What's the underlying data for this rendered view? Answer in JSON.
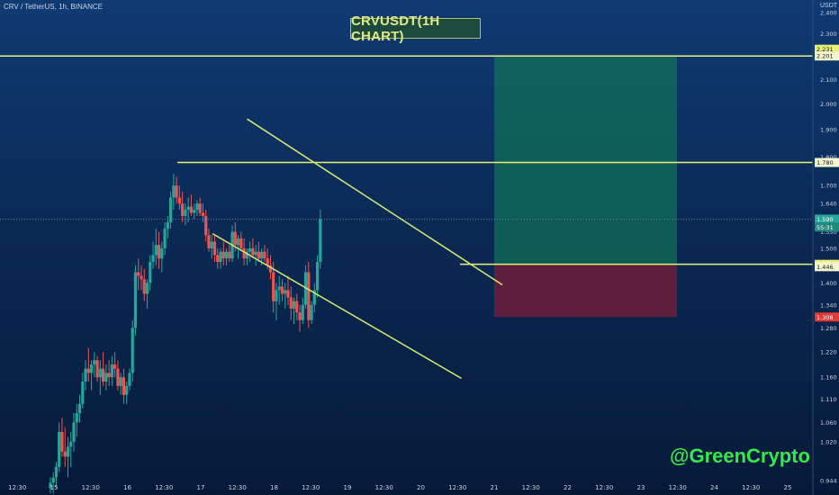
{
  "header": {
    "symbol": "CRV / TetherUS, 1h, BINANCE",
    "currency": "USDT"
  },
  "title": "CRVUSDT(1H CHART)",
  "watermark": "@GreenCrypto",
  "colors": {
    "up": "#26a69a",
    "down": "#ef5350",
    "level_line": "#e8f07a",
    "channel_line": "#d6e870",
    "target_zone": "#0f7a57",
    "stop_zone": "#7a1d35",
    "title_text": "#dfe98a",
    "watermark": "#34e84e"
  },
  "chart_data": {
    "type": "candlestick",
    "symbol": "CRV / TetherUS",
    "timeframe": "1h",
    "exchange": "BINANCE",
    "title": "CRVUSDT(1H CHART)",
    "ylim": [
      0.92,
      2.42
    ],
    "y_ticks": [
      "0.944",
      "1.020",
      "1.060",
      "1.110",
      "1.160",
      "1.220",
      "1.280",
      "1.340",
      "1.400",
      "1.500",
      "1.550",
      "1.640",
      "1.700",
      "1.800",
      "1.900",
      "2.000",
      "2.100",
      "2.300",
      "2.400"
    ],
    "x_ticks": [
      "12:30",
      "15",
      "12:30",
      "16",
      "12:30",
      "17",
      "12:30",
      "18",
      "12:30",
      "19",
      "12:30",
      "20",
      "12:30",
      "21",
      "12:30",
      "22",
      "12:30",
      "23",
      "12:30",
      "24",
      "12:30",
      "25"
    ],
    "current_price": "1.590",
    "countdown": "55:31",
    "levels": [
      {
        "name": "target",
        "value": 2.201,
        "label": "2.201",
        "label_top": "2.231"
      },
      {
        "name": "resistance",
        "value": 1.78,
        "label": "1.780"
      },
      {
        "name": "breakout",
        "value": 1.453,
        "label": "1.453",
        "label_second": "1.446"
      },
      {
        "name": "stop",
        "value": 1.308,
        "label": "1.308"
      }
    ],
    "positions": {
      "entry": 1.453,
      "target": 2.201,
      "stop": 1.308
    },
    "channel": {
      "upper": [
        {
          "t": 18.0,
          "p": 1.9
        },
        {
          "t": 20.78,
          "p": 1.42
        }
      ],
      "lower": [
        {
          "t": 17.1,
          "p": 1.55
        },
        {
          "t": 20.7,
          "p": 1.17
        }
      ]
    },
    "candles": [
      [
        14.95,
        0.93,
        0.95,
        0.92,
        0.94
      ],
      [
        14.99,
        0.94,
        0.96,
        0.92,
        0.95
      ],
      [
        15.03,
        0.95,
        0.98,
        0.93,
        0.97
      ],
      [
        15.07,
        0.97,
        1.06,
        0.96,
        1.04
      ],
      [
        15.11,
        1.04,
        1.07,
        0.99,
        1.0
      ],
      [
        15.15,
        1.0,
        1.05,
        0.97,
        0.99
      ],
      [
        15.19,
        0.99,
        1.03,
        0.95,
        1.01
      ],
      [
        15.23,
        1.01,
        1.04,
        0.97,
        1.02
      ],
      [
        15.27,
        1.02,
        1.08,
        1.0,
        1.06
      ],
      [
        15.31,
        1.06,
        1.1,
        1.03,
        1.08
      ],
      [
        15.35,
        1.08,
        1.12,
        1.06,
        1.1
      ],
      [
        15.39,
        1.1,
        1.17,
        1.09,
        1.15
      ],
      [
        15.43,
        1.15,
        1.2,
        1.13,
        1.18
      ],
      [
        15.47,
        1.18,
        1.23,
        1.15,
        1.17
      ],
      [
        15.51,
        1.17,
        1.2,
        1.13,
        1.19
      ],
      [
        15.55,
        1.19,
        1.22,
        1.16,
        1.2
      ],
      [
        15.59,
        1.2,
        1.21,
        1.15,
        1.16
      ],
      [
        15.63,
        1.16,
        1.2,
        1.12,
        1.18
      ],
      [
        15.67,
        1.18,
        1.22,
        1.14,
        1.15
      ],
      [
        15.71,
        1.15,
        1.19,
        1.13,
        1.17
      ],
      [
        15.75,
        1.17,
        1.2,
        1.14,
        1.16
      ],
      [
        15.79,
        1.16,
        1.21,
        1.14,
        1.19
      ],
      [
        15.83,
        1.19,
        1.22,
        1.16,
        1.18
      ],
      [
        15.87,
        1.18,
        1.2,
        1.13,
        1.14
      ],
      [
        15.91,
        1.14,
        1.17,
        1.12,
        1.16
      ],
      [
        15.95,
        1.16,
        1.18,
        1.1,
        1.12
      ],
      [
        15.99,
        1.12,
        1.15,
        1.1,
        1.14
      ],
      [
        16.03,
        1.14,
        1.18,
        1.13,
        1.17
      ],
      [
        16.07,
        1.17,
        1.3,
        1.15,
        1.28
      ],
      [
        16.11,
        1.28,
        1.45,
        1.26,
        1.43
      ],
      [
        16.15,
        1.43,
        1.47,
        1.38,
        1.42
      ],
      [
        16.19,
        1.42,
        1.45,
        1.38,
        1.41
      ],
      [
        16.23,
        1.41,
        1.44,
        1.35,
        1.37
      ],
      [
        16.27,
        1.37,
        1.41,
        1.33,
        1.4
      ],
      [
        16.31,
        1.4,
        1.48,
        1.38,
        1.46
      ],
      [
        16.35,
        1.46,
        1.52,
        1.44,
        1.48
      ],
      [
        16.39,
        1.48,
        1.56,
        1.45,
        1.51
      ],
      [
        16.43,
        1.51,
        1.55,
        1.44,
        1.47
      ],
      [
        16.47,
        1.47,
        1.52,
        1.43,
        1.5
      ],
      [
        16.51,
        1.5,
        1.58,
        1.48,
        1.56
      ],
      [
        16.55,
        1.56,
        1.6,
        1.53,
        1.58
      ],
      [
        16.59,
        1.58,
        1.68,
        1.56,
        1.66
      ],
      [
        16.63,
        1.66,
        1.74,
        1.62,
        1.7
      ],
      [
        16.67,
        1.7,
        1.73,
        1.64,
        1.66
      ],
      [
        16.71,
        1.66,
        1.7,
        1.62,
        1.64
      ],
      [
        16.75,
        1.64,
        1.68,
        1.58,
        1.6
      ],
      [
        16.79,
        1.6,
        1.64,
        1.57,
        1.62
      ],
      [
        16.83,
        1.62,
        1.66,
        1.58,
        1.63
      ],
      [
        16.87,
        1.63,
        1.67,
        1.6,
        1.61
      ],
      [
        16.91,
        1.61,
        1.64,
        1.59,
        1.62
      ],
      [
        16.95,
        1.62,
        1.65,
        1.6,
        1.64
      ],
      [
        16.99,
        1.64,
        1.66,
        1.6,
        1.61
      ],
      [
        17.03,
        1.61,
        1.64,
        1.58,
        1.6
      ],
      [
        17.07,
        1.6,
        1.62,
        1.52,
        1.54
      ],
      [
        17.11,
        1.54,
        1.56,
        1.49,
        1.5
      ],
      [
        17.15,
        1.5,
        1.54,
        1.47,
        1.52
      ],
      [
        17.19,
        1.52,
        1.54,
        1.46,
        1.48
      ],
      [
        17.23,
        1.48,
        1.5,
        1.44,
        1.46
      ],
      [
        17.27,
        1.46,
        1.5,
        1.44,
        1.49
      ],
      [
        17.31,
        1.49,
        1.52,
        1.45,
        1.47
      ],
      [
        17.35,
        1.47,
        1.5,
        1.45,
        1.49
      ],
      [
        17.39,
        1.49,
        1.51,
        1.46,
        1.47
      ],
      [
        17.43,
        1.47,
        1.57,
        1.46,
        1.55
      ],
      [
        17.47,
        1.55,
        1.58,
        1.49,
        1.51
      ],
      [
        17.51,
        1.51,
        1.54,
        1.47,
        1.53
      ],
      [
        17.55,
        1.53,
        1.55,
        1.49,
        1.5
      ],
      [
        17.59,
        1.5,
        1.53,
        1.45,
        1.47
      ],
      [
        17.63,
        1.47,
        1.5,
        1.45,
        1.49
      ],
      [
        17.67,
        1.49,
        1.52,
        1.46,
        1.5
      ],
      [
        17.71,
        1.5,
        1.53,
        1.47,
        1.48
      ],
      [
        17.75,
        1.48,
        1.51,
        1.45,
        1.49
      ],
      [
        17.79,
        1.49,
        1.52,
        1.46,
        1.47
      ],
      [
        17.83,
        1.47,
        1.5,
        1.45,
        1.49
      ],
      [
        17.87,
        1.49,
        1.51,
        1.46,
        1.47
      ],
      [
        17.91,
        1.47,
        1.5,
        1.44,
        1.45
      ],
      [
        17.95,
        1.45,
        1.48,
        1.41,
        1.43
      ],
      [
        17.99,
        1.43,
        1.46,
        1.32,
        1.35
      ],
      [
        18.03,
        1.35,
        1.4,
        1.3,
        1.38
      ],
      [
        18.07,
        1.38,
        1.42,
        1.34,
        1.39
      ],
      [
        18.11,
        1.39,
        1.41,
        1.35,
        1.37
      ],
      [
        18.15,
        1.37,
        1.4,
        1.33,
        1.38
      ],
      [
        18.19,
        1.38,
        1.42,
        1.34,
        1.36
      ],
      [
        18.23,
        1.36,
        1.39,
        1.3,
        1.33
      ],
      [
        18.27,
        1.33,
        1.36,
        1.29,
        1.35
      ],
      [
        18.31,
        1.35,
        1.37,
        1.3,
        1.32
      ],
      [
        18.35,
        1.32,
        1.34,
        1.27,
        1.3
      ],
      [
        18.39,
        1.3,
        1.36,
        1.29,
        1.34
      ],
      [
        18.43,
        1.34,
        1.45,
        1.33,
        1.43
      ],
      [
        18.47,
        1.43,
        1.46,
        1.28,
        1.3
      ],
      [
        18.51,
        1.3,
        1.35,
        1.29,
        1.34
      ],
      [
        18.55,
        1.34,
        1.4,
        1.32,
        1.38
      ],
      [
        18.59,
        1.38,
        1.48,
        1.36,
        1.46
      ],
      [
        18.63,
        1.46,
        1.62,
        1.44,
        1.59
      ]
    ]
  }
}
